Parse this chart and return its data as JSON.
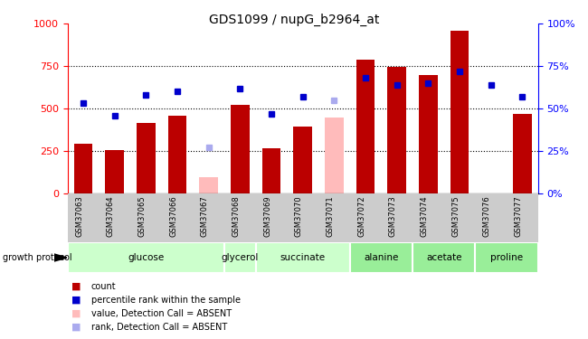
{
  "title": "GDS1099 / nupG_b2964_at",
  "samples": [
    "GSM37063",
    "GSM37064",
    "GSM37065",
    "GSM37066",
    "GSM37067",
    "GSM37068",
    "GSM37069",
    "GSM37070",
    "GSM37071",
    "GSM37072",
    "GSM37073",
    "GSM37074",
    "GSM37075",
    "GSM37076",
    "GSM37077"
  ],
  "bar_values": [
    290,
    255,
    415,
    460,
    null,
    520,
    265,
    395,
    null,
    790,
    745,
    700,
    960,
    null,
    470
  ],
  "bar_absent_values": [
    null,
    null,
    null,
    null,
    95,
    null,
    null,
    null,
    445,
    null,
    null,
    null,
    null,
    null,
    null
  ],
  "rank_values": [
    53,
    46,
    58,
    60,
    null,
    62,
    47,
    57,
    null,
    68,
    64,
    65,
    72,
    64,
    57
  ],
  "rank_absent_values": [
    null,
    null,
    null,
    null,
    27,
    null,
    null,
    null,
    55,
    null,
    null,
    null,
    null,
    null,
    null
  ],
  "group_spans": [
    {
      "label": "glucose",
      "indices": [
        0,
        1,
        2,
        3,
        4
      ],
      "color": "#ccffcc"
    },
    {
      "label": "glycerol",
      "indices": [
        5
      ],
      "color": "#ccffcc"
    },
    {
      "label": "succinate",
      "indices": [
        6,
        7,
        8
      ],
      "color": "#ccffcc"
    },
    {
      "label": "alanine",
      "indices": [
        9,
        10
      ],
      "color": "#99ee99"
    },
    {
      "label": "acetate",
      "indices": [
        11,
        12
      ],
      "color": "#99ee99"
    },
    {
      "label": "proline",
      "indices": [
        13,
        14
      ],
      "color": "#99ee99"
    }
  ],
  "bar_color": "#bb0000",
  "bar_absent_color": "#ffbbbb",
  "rank_color": "#0000cc",
  "rank_absent_color": "#aaaaee",
  "ylim_left": [
    0,
    1000
  ],
  "ylim_right": [
    0,
    100
  ],
  "yticks_left": [
    0,
    250,
    500,
    750,
    1000
  ],
  "yticks_right": [
    0,
    25,
    50,
    75,
    100
  ],
  "legend_items": [
    {
      "color": "#bb0000",
      "label": "count"
    },
    {
      "color": "#0000cc",
      "label": "percentile rank within the sample"
    },
    {
      "color": "#ffbbbb",
      "label": "value, Detection Call = ABSENT"
    },
    {
      "color": "#aaaaee",
      "label": "rank, Detection Call = ABSENT"
    }
  ]
}
